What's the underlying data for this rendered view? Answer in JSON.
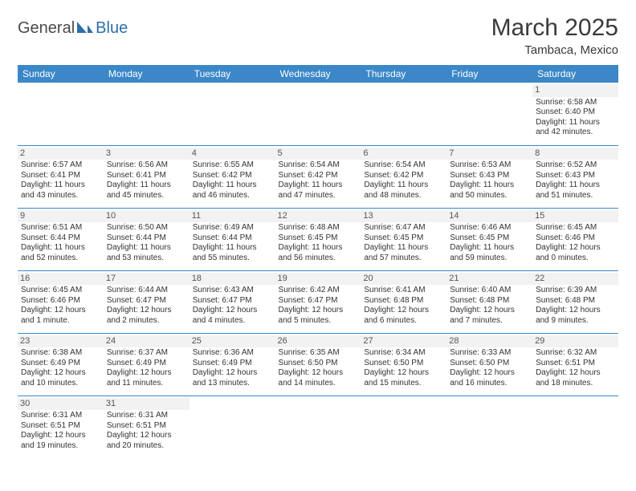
{
  "header": {
    "logo_part1": "General",
    "logo_part2": "Blue",
    "month_title": "March 2025",
    "location": "Tambaca, Mexico"
  },
  "colors": {
    "header_bg": "#3b87c8",
    "header_text": "#ffffff",
    "cell_border": "#3b87c8",
    "logo_accent": "#2f6fa8",
    "text": "#333333",
    "daynum_bg": "#f2f2f2"
  },
  "weekdays": [
    "Sunday",
    "Monday",
    "Tuesday",
    "Wednesday",
    "Thursday",
    "Friday",
    "Saturday"
  ],
  "weeks": [
    [
      {
        "day": "",
        "sunrise": "",
        "sunset": "",
        "daylight1": "",
        "daylight2": ""
      },
      {
        "day": "",
        "sunrise": "",
        "sunset": "",
        "daylight1": "",
        "daylight2": ""
      },
      {
        "day": "",
        "sunrise": "",
        "sunset": "",
        "daylight1": "",
        "daylight2": ""
      },
      {
        "day": "",
        "sunrise": "",
        "sunset": "",
        "daylight1": "",
        "daylight2": ""
      },
      {
        "day": "",
        "sunrise": "",
        "sunset": "",
        "daylight1": "",
        "daylight2": ""
      },
      {
        "day": "",
        "sunrise": "",
        "sunset": "",
        "daylight1": "",
        "daylight2": ""
      },
      {
        "day": "1",
        "sunrise": "Sunrise: 6:58 AM",
        "sunset": "Sunset: 6:40 PM",
        "daylight1": "Daylight: 11 hours",
        "daylight2": "and 42 minutes."
      }
    ],
    [
      {
        "day": "2",
        "sunrise": "Sunrise: 6:57 AM",
        "sunset": "Sunset: 6:41 PM",
        "daylight1": "Daylight: 11 hours",
        "daylight2": "and 43 minutes."
      },
      {
        "day": "3",
        "sunrise": "Sunrise: 6:56 AM",
        "sunset": "Sunset: 6:41 PM",
        "daylight1": "Daylight: 11 hours",
        "daylight2": "and 45 minutes."
      },
      {
        "day": "4",
        "sunrise": "Sunrise: 6:55 AM",
        "sunset": "Sunset: 6:42 PM",
        "daylight1": "Daylight: 11 hours",
        "daylight2": "and 46 minutes."
      },
      {
        "day": "5",
        "sunrise": "Sunrise: 6:54 AM",
        "sunset": "Sunset: 6:42 PM",
        "daylight1": "Daylight: 11 hours",
        "daylight2": "and 47 minutes."
      },
      {
        "day": "6",
        "sunrise": "Sunrise: 6:54 AM",
        "sunset": "Sunset: 6:42 PM",
        "daylight1": "Daylight: 11 hours",
        "daylight2": "and 48 minutes."
      },
      {
        "day": "7",
        "sunrise": "Sunrise: 6:53 AM",
        "sunset": "Sunset: 6:43 PM",
        "daylight1": "Daylight: 11 hours",
        "daylight2": "and 50 minutes."
      },
      {
        "day": "8",
        "sunrise": "Sunrise: 6:52 AM",
        "sunset": "Sunset: 6:43 PM",
        "daylight1": "Daylight: 11 hours",
        "daylight2": "and 51 minutes."
      }
    ],
    [
      {
        "day": "9",
        "sunrise": "Sunrise: 6:51 AM",
        "sunset": "Sunset: 6:44 PM",
        "daylight1": "Daylight: 11 hours",
        "daylight2": "and 52 minutes."
      },
      {
        "day": "10",
        "sunrise": "Sunrise: 6:50 AM",
        "sunset": "Sunset: 6:44 PM",
        "daylight1": "Daylight: 11 hours",
        "daylight2": "and 53 minutes."
      },
      {
        "day": "11",
        "sunrise": "Sunrise: 6:49 AM",
        "sunset": "Sunset: 6:44 PM",
        "daylight1": "Daylight: 11 hours",
        "daylight2": "and 55 minutes."
      },
      {
        "day": "12",
        "sunrise": "Sunrise: 6:48 AM",
        "sunset": "Sunset: 6:45 PM",
        "daylight1": "Daylight: 11 hours",
        "daylight2": "and 56 minutes."
      },
      {
        "day": "13",
        "sunrise": "Sunrise: 6:47 AM",
        "sunset": "Sunset: 6:45 PM",
        "daylight1": "Daylight: 11 hours",
        "daylight2": "and 57 minutes."
      },
      {
        "day": "14",
        "sunrise": "Sunrise: 6:46 AM",
        "sunset": "Sunset: 6:45 PM",
        "daylight1": "Daylight: 11 hours",
        "daylight2": "and 59 minutes."
      },
      {
        "day": "15",
        "sunrise": "Sunrise: 6:45 AM",
        "sunset": "Sunset: 6:46 PM",
        "daylight1": "Daylight: 12 hours",
        "daylight2": "and 0 minutes."
      }
    ],
    [
      {
        "day": "16",
        "sunrise": "Sunrise: 6:45 AM",
        "sunset": "Sunset: 6:46 PM",
        "daylight1": "Daylight: 12 hours",
        "daylight2": "and 1 minute."
      },
      {
        "day": "17",
        "sunrise": "Sunrise: 6:44 AM",
        "sunset": "Sunset: 6:47 PM",
        "daylight1": "Daylight: 12 hours",
        "daylight2": "and 2 minutes."
      },
      {
        "day": "18",
        "sunrise": "Sunrise: 6:43 AM",
        "sunset": "Sunset: 6:47 PM",
        "daylight1": "Daylight: 12 hours",
        "daylight2": "and 4 minutes."
      },
      {
        "day": "19",
        "sunrise": "Sunrise: 6:42 AM",
        "sunset": "Sunset: 6:47 PM",
        "daylight1": "Daylight: 12 hours",
        "daylight2": "and 5 minutes."
      },
      {
        "day": "20",
        "sunrise": "Sunrise: 6:41 AM",
        "sunset": "Sunset: 6:48 PM",
        "daylight1": "Daylight: 12 hours",
        "daylight2": "and 6 minutes."
      },
      {
        "day": "21",
        "sunrise": "Sunrise: 6:40 AM",
        "sunset": "Sunset: 6:48 PM",
        "daylight1": "Daylight: 12 hours",
        "daylight2": "and 7 minutes."
      },
      {
        "day": "22",
        "sunrise": "Sunrise: 6:39 AM",
        "sunset": "Sunset: 6:48 PM",
        "daylight1": "Daylight: 12 hours",
        "daylight2": "and 9 minutes."
      }
    ],
    [
      {
        "day": "23",
        "sunrise": "Sunrise: 6:38 AM",
        "sunset": "Sunset: 6:49 PM",
        "daylight1": "Daylight: 12 hours",
        "daylight2": "and 10 minutes."
      },
      {
        "day": "24",
        "sunrise": "Sunrise: 6:37 AM",
        "sunset": "Sunset: 6:49 PM",
        "daylight1": "Daylight: 12 hours",
        "daylight2": "and 11 minutes."
      },
      {
        "day": "25",
        "sunrise": "Sunrise: 6:36 AM",
        "sunset": "Sunset: 6:49 PM",
        "daylight1": "Daylight: 12 hours",
        "daylight2": "and 13 minutes."
      },
      {
        "day": "26",
        "sunrise": "Sunrise: 6:35 AM",
        "sunset": "Sunset: 6:50 PM",
        "daylight1": "Daylight: 12 hours",
        "daylight2": "and 14 minutes."
      },
      {
        "day": "27",
        "sunrise": "Sunrise: 6:34 AM",
        "sunset": "Sunset: 6:50 PM",
        "daylight1": "Daylight: 12 hours",
        "daylight2": "and 15 minutes."
      },
      {
        "day": "28",
        "sunrise": "Sunrise: 6:33 AM",
        "sunset": "Sunset: 6:50 PM",
        "daylight1": "Daylight: 12 hours",
        "daylight2": "and 16 minutes."
      },
      {
        "day": "29",
        "sunrise": "Sunrise: 6:32 AM",
        "sunset": "Sunset: 6:51 PM",
        "daylight1": "Daylight: 12 hours",
        "daylight2": "and 18 minutes."
      }
    ],
    [
      {
        "day": "30",
        "sunrise": "Sunrise: 6:31 AM",
        "sunset": "Sunset: 6:51 PM",
        "daylight1": "Daylight: 12 hours",
        "daylight2": "and 19 minutes."
      },
      {
        "day": "31",
        "sunrise": "Sunrise: 6:31 AM",
        "sunset": "Sunset: 6:51 PM",
        "daylight1": "Daylight: 12 hours",
        "daylight2": "and 20 minutes."
      },
      {
        "day": "",
        "sunrise": "",
        "sunset": "",
        "daylight1": "",
        "daylight2": ""
      },
      {
        "day": "",
        "sunrise": "",
        "sunset": "",
        "daylight1": "",
        "daylight2": ""
      },
      {
        "day": "",
        "sunrise": "",
        "sunset": "",
        "daylight1": "",
        "daylight2": ""
      },
      {
        "day": "",
        "sunrise": "",
        "sunset": "",
        "daylight1": "",
        "daylight2": ""
      },
      {
        "day": "",
        "sunrise": "",
        "sunset": "",
        "daylight1": "",
        "daylight2": ""
      }
    ]
  ]
}
